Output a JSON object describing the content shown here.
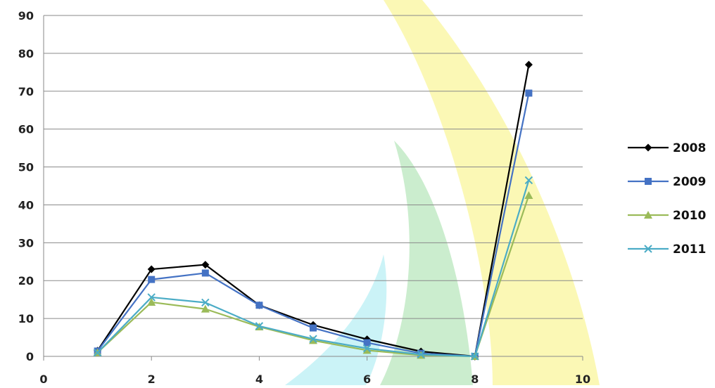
{
  "chart_data": {
    "type": "line",
    "title": "",
    "xlabel": "",
    "ylabel": "",
    "xlim": [
      0,
      10
    ],
    "ylim": [
      0,
      90
    ],
    "x_ticks": [
      "0",
      "2",
      "4",
      "6",
      "8",
      "10"
    ],
    "y_ticks": [
      "0",
      "10",
      "20",
      "30",
      "40",
      "50",
      "60",
      "70",
      "80",
      "90"
    ],
    "grid": "horizontal",
    "legend_position": "right",
    "x": [
      1,
      2,
      3,
      4,
      5,
      6,
      7,
      8,
      9
    ],
    "series": [
      {
        "name": "2008",
        "color": "#000000",
        "marker": "diamond",
        "values": [
          1.5,
          23,
          24.2,
          13.5,
          8.3,
          4.5,
          1.3,
          0,
          77
        ]
      },
      {
        "name": "2009",
        "color": "#4472C4",
        "marker": "square",
        "values": [
          1.4,
          20.3,
          22,
          13.5,
          7.5,
          3.6,
          0.8,
          0,
          69.5
        ]
      },
      {
        "name": "2010",
        "color": "#9BBB59",
        "marker": "triangle",
        "values": [
          1.0,
          14.3,
          12.5,
          7.8,
          4.2,
          1.6,
          0.3,
          0,
          42.5
        ]
      },
      {
        "name": "2011",
        "color": "#4BACC6",
        "marker": "x",
        "values": [
          1.0,
          15.6,
          14.2,
          8.0,
          4.6,
          2.1,
          0.5,
          0,
          46.5
        ]
      }
    ]
  }
}
